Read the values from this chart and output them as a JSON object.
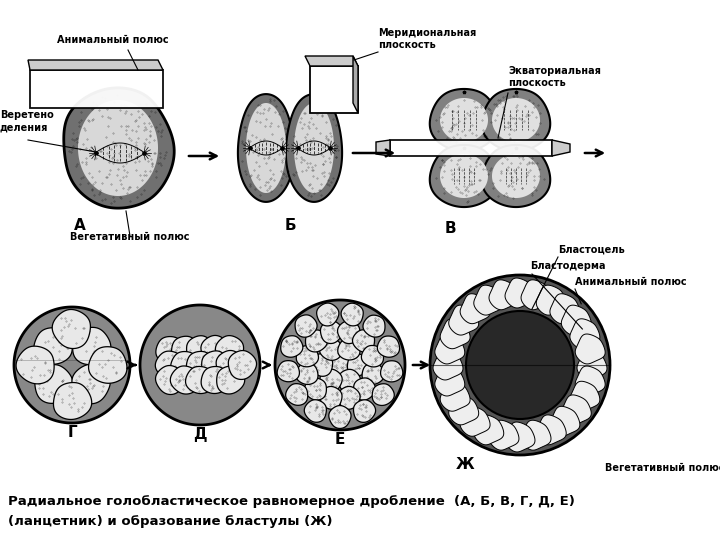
{
  "title_line1": "Радиальное голобластическое равномерное дробление  (А, Б, В, Г, Д, Е)",
  "title_line2": "(ланцетник) и образование бластулы (Ж)",
  "ann_animal": "Анимальный полюс",
  "ann_meridional": "Меридиональная\nплоскость",
  "ann_spindle": "Веретено\nделения",
  "ann_vegetative": "Вегетативный полюс",
  "ann_equatorial": "Экваториальная\nплоскость",
  "ann_blastocoel": "Бластоцель",
  "ann_blastoderm": "Бластодерма",
  "ann_animal2": "Анимальный полюс",
  "ann_vegetative2": "Вегетативный полюс",
  "bg_color": "#ffffff",
  "cell_light": "#e8e8e8",
  "cell_mid": "#c8c8c8",
  "cell_dark": "#888888",
  "cell_very_dark": "#404040"
}
